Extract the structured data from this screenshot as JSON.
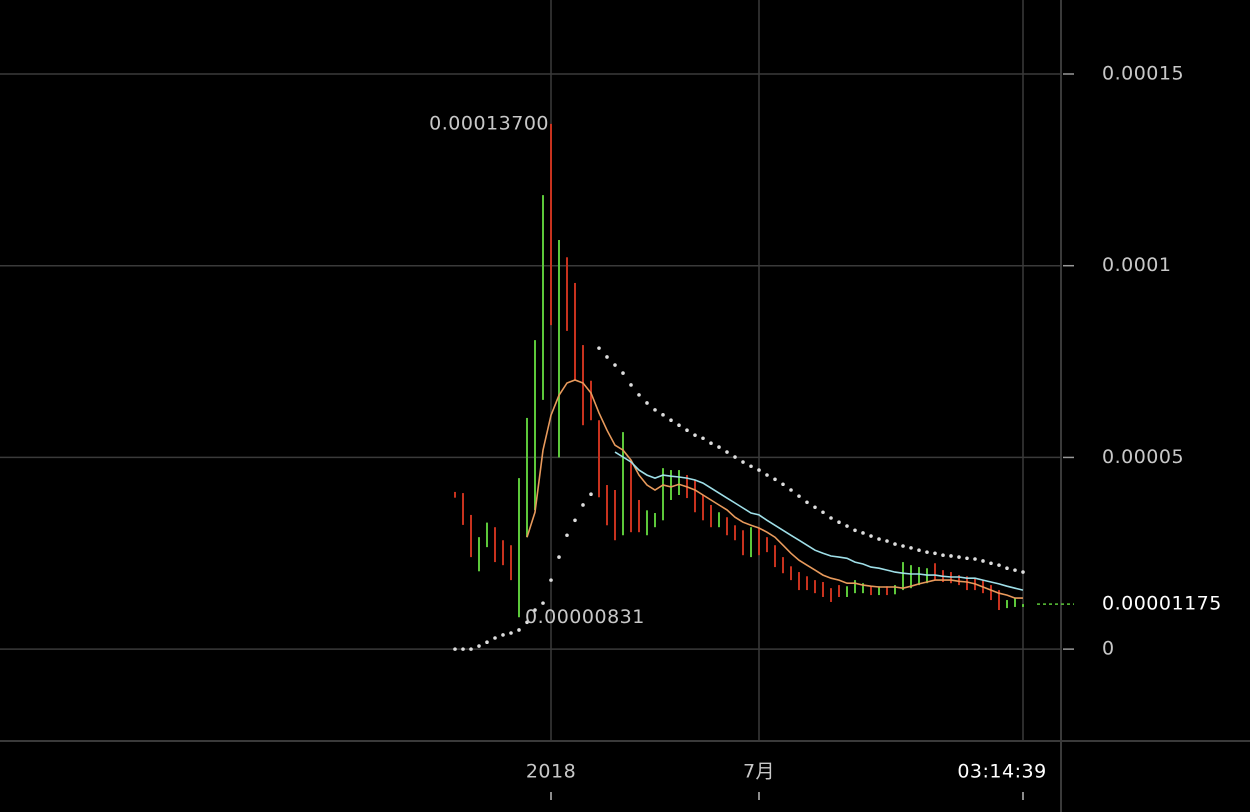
{
  "chart_data": {
    "type": "ohlc",
    "x": [
      -12,
      -11,
      -10,
      -9,
      -8,
      -7,
      -6,
      -5,
      -4,
      -3,
      -2,
      -1,
      0,
      1,
      2,
      3,
      4,
      5,
      6,
      7,
      8,
      9,
      10,
      11,
      12,
      13,
      14,
      15,
      16,
      17,
      18,
      19,
      20,
      21,
      22,
      23,
      24,
      25,
      26,
      27,
      28,
      29,
      30,
      31,
      32,
      33,
      34,
      35,
      36,
      37,
      38,
      39,
      40,
      41,
      42,
      43,
      44,
      45,
      46,
      47,
      48,
      49,
      50,
      51,
      52,
      53,
      54,
      55,
      56,
      57,
      58,
      59
    ],
    "open": [
      4.1e-05,
      4.07e-05,
      3.5e-05,
      2.03e-05,
      2.66e-05,
      3.18e-05,
      2.84e-05,
      2.71e-05,
      8.31e-06,
      2.92e-05,
      3.63e-05,
      6.5e-05,
      0.000137,
      5e-05,
      0.0001022,
      9.55e-05,
      7.93e-05,
      7e-05,
      5.97e-05,
      4.28e-05,
      4.15e-05,
      2.97e-05,
      4.93e-05,
      3.89e-05,
      2.97e-05,
      3.18e-05,
      3.36e-05,
      3.89e-05,
      4.02e-05,
      4.54e-05,
      4.41e-05,
      4.02e-05,
      3.76e-05,
      3.18e-05,
      3.44e-05,
      3.23e-05,
      3.1e-05,
      2.4e-05,
      3.16e-05,
      2.92e-05,
      2.71e-05,
      2.4e-05,
      2.16e-05,
      2.01e-05,
      1.9e-05,
      1.8e-05,
      1.75e-05,
      1.59e-05,
      1.67e-05,
      1.36e-05,
      1.46e-05,
      1.46e-05,
      1.64e-05,
      1.41e-05,
      1.64e-05,
      1.43e-05,
      1.54e-05,
      1.59e-05,
      1.67e-05,
      1.72e-05,
      2.24e-05,
      2.06e-05,
      2.01e-05,
      1.93e-05,
      1.9e-05,
      1.85e-05,
      1.8e-05,
      1.67e-05,
      1.54e-05,
      1.07e-05,
      1.1e-05,
      1.1e-05
    ],
    "close": [
      3.95e-05,
      3.24e-05,
      2.4e-05,
      2.92e-05,
      3.3e-05,
      2.27e-05,
      2.19e-05,
      1.8e-05,
      4.46e-05,
      6.03e-05,
      8.06e-05,
      0.0001184,
      8.45e-05,
      0.0001067,
      8.3e-05,
      7e-05,
      5.84e-05,
      5.97e-05,
      3.96e-05,
      3.23e-05,
      2.84e-05,
      5.66e-05,
      3.05e-05,
      3.05e-05,
      3.62e-05,
      3.55e-05,
      4.72e-05,
      4.67e-05,
      4.67e-05,
      3.94e-05,
      3.57e-05,
      3.36e-05,
      3.18e-05,
      3.57e-05,
      2.97e-05,
      2.84e-05,
      2.45e-05,
      3.18e-05,
      2.45e-05,
      2.53e-05,
      2.14e-05,
      1.98e-05,
      1.8e-05,
      1.54e-05,
      1.54e-05,
      1.46e-05,
      1.36e-05,
      1.23e-05,
      1.36e-05,
      1.64e-05,
      1.8e-05,
      1.72e-05,
      1.41e-05,
      1.64e-05,
      1.41e-05,
      1.67e-05,
      2.27e-05,
      2.19e-05,
      2.14e-05,
      2.11e-05,
      1.8e-05,
      1.75e-05,
      1.72e-05,
      1.67e-05,
      1.54e-05,
      1.54e-05,
      1.46e-05,
      1.28e-05,
      1.02e-05,
      1.28e-05,
      1.33e-05,
      1.175e-05
    ],
    "up_color": "#5cc83a",
    "down_color": "#c8321e",
    "series": [
      {
        "color": "#e89a5c",
        "marker": "line",
        "values": [
          null,
          null,
          null,
          null,
          null,
          null,
          null,
          null,
          null,
          2.92e-05,
          3.57e-05,
          5.19e-05,
          6.1e-05,
          6.62e-05,
          6.94e-05,
          7.02e-05,
          6.94e-05,
          6.68e-05,
          6.16e-05,
          5.71e-05,
          5.32e-05,
          5.19e-05,
          4.93e-05,
          4.54e-05,
          4.28e-05,
          4.15e-05,
          4.28e-05,
          4.23e-05,
          4.3e-05,
          4.23e-05,
          4.15e-05,
          4.02e-05,
          3.89e-05,
          3.76e-05,
          3.63e-05,
          3.44e-05,
          3.31e-05,
          3.23e-05,
          3.16e-05,
          3.05e-05,
          2.92e-05,
          2.71e-05,
          2.5e-05,
          2.32e-05,
          2.19e-05,
          2.06e-05,
          1.93e-05,
          1.85e-05,
          1.8e-05,
          1.72e-05,
          1.72e-05,
          1.67e-05,
          1.64e-05,
          1.62e-05,
          1.62e-05,
          1.62e-05,
          1.59e-05,
          1.64e-05,
          1.7e-05,
          1.75e-05,
          1.8e-05,
          1.8e-05,
          1.8e-05,
          1.77e-05,
          1.75e-05,
          1.7e-05,
          1.62e-05,
          1.54e-05,
          1.46e-05,
          1.41e-05,
          1.33e-05,
          1.33e-05
        ]
      },
      {
        "color": "#9fdfe8",
        "marker": "line",
        "values": [
          null,
          null,
          null,
          null,
          null,
          null,
          null,
          null,
          null,
          null,
          null,
          null,
          null,
          null,
          null,
          null,
          null,
          null,
          null,
          null,
          5.14e-05,
          5.01e-05,
          4.88e-05,
          4.67e-05,
          4.54e-05,
          4.46e-05,
          4.54e-05,
          4.51e-05,
          4.49e-05,
          4.46e-05,
          4.41e-05,
          4.33e-05,
          4.2e-05,
          4.07e-05,
          3.94e-05,
          3.81e-05,
          3.68e-05,
          3.55e-05,
          3.5e-05,
          3.36e-05,
          3.23e-05,
          3.1e-05,
          2.97e-05,
          2.84e-05,
          2.71e-05,
          2.58e-05,
          2.5e-05,
          2.43e-05,
          2.4e-05,
          2.37e-05,
          2.27e-05,
          2.22e-05,
          2.14e-05,
          2.11e-05,
          2.06e-05,
          2.01e-05,
          1.98e-05,
          1.96e-05,
          1.96e-05,
          1.93e-05,
          1.93e-05,
          1.9e-05,
          1.88e-05,
          1.88e-05,
          1.85e-05,
          1.85e-05,
          1.8e-05,
          1.75e-05,
          1.7e-05,
          1.64e-05,
          1.59e-05,
          1.54e-05
        ]
      },
      {
        "color": "#dddddd",
        "marker": "dots",
        "values": [
          0,
          0,
          0,
          8e-07,
          1.8e-06,
          2.9e-06,
          3.7e-06,
          4.2e-06,
          5e-06,
          7e-06,
          1.02e-05,
          1.2e-05,
          1.8e-05,
          2.4e-05,
          2.97e-05,
          3.36e-05,
          3.76e-05,
          4.04e-05,
          7.85e-05,
          7.62e-05,
          7.41e-05,
          7.2e-05,
          6.89e-05,
          6.63e-05,
          6.42e-05,
          6.24e-05,
          6.11e-05,
          5.97e-05,
          5.84e-05,
          5.71e-05,
          5.58e-05,
          5.5e-05,
          5.37e-05,
          5.27e-05,
          5.14e-05,
          5.01e-05,
          4.88e-05,
          4.77e-05,
          4.67e-05,
          4.54e-05,
          4.43e-05,
          4.3e-05,
          4.15e-05,
          3.99e-05,
          3.83e-05,
          3.7e-05,
          3.57e-05,
          3.42e-05,
          3.31e-05,
          3.21e-05,
          3.1e-05,
          3.03e-05,
          2.95e-05,
          2.87e-05,
          2.82e-05,
          2.74e-05,
          2.69e-05,
          2.64e-05,
          2.58e-05,
          2.53e-05,
          2.5e-05,
          2.45e-05,
          2.43e-05,
          2.4e-05,
          2.37e-05,
          2.35e-05,
          2.3e-05,
          2.24e-05,
          2.19e-05,
          2.11e-05,
          2.06e-05,
          2.01e-05
        ]
      }
    ],
    "xlim": [
      -68.875,
      63.625
    ],
    "xticks": [
      {
        "value": 0,
        "label": "2018"
      },
      {
        "value": 26,
        "label": "7月"
      },
      {
        "value": 59,
        "label": "03:14:39"
      }
    ],
    "ylim": [
      -2.37e-05,
      0.0001693
    ],
    "yticks": [
      0,
      5e-05,
      0.0001,
      0.00015
    ],
    "grid": true,
    "annotations": [
      {
        "x": 0,
        "value": 0.000137,
        "label": "0.00013700"
      },
      {
        "x": -4,
        "value": 8.31e-06,
        "label": "0.00000831"
      }
    ],
    "last_price": {
      "value": 1.175e-05,
      "label": "0.00001175",
      "color": "#5cc83a"
    }
  }
}
